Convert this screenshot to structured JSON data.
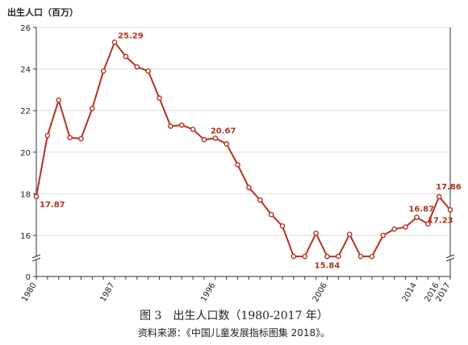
{
  "chart_data": {
    "type": "line",
    "ylabel": "出生人口（百万）",
    "ylim": [
      0,
      26
    ],
    "yticks": [
      0,
      16,
      18,
      20,
      22,
      24,
      26
    ],
    "y_axis_break": true,
    "grid": "horizontal",
    "xtick_labels": [
      "1980",
      "1987",
      "1996",
      "2006",
      "2014",
      "2016",
      "2017"
    ],
    "x": [
      1980,
      1981,
      1982,
      1983,
      1984,
      1985,
      1986,
      1987,
      1988,
      1989,
      1990,
      1991,
      1992,
      1993,
      1994,
      1995,
      1996,
      1997,
      1998,
      1999,
      2000,
      2001,
      2002,
      2003,
      2004,
      2005,
      2006,
      2007,
      2008,
      2009,
      2010,
      2011,
      2012,
      2013,
      2014,
      2015,
      2016,
      2017
    ],
    "series": [
      {
        "color": "#b5311f",
        "values": [
          17.87,
          20.8,
          22.5,
          20.7,
          20.65,
          22.1,
          23.9,
          25.29,
          24.6,
          24.1,
          23.9,
          22.6,
          21.25,
          21.3,
          21.1,
          20.6,
          20.67,
          20.4,
          19.4,
          18.3,
          17.7,
          17.0,
          16.45,
          15.95,
          15.9,
          16.1,
          15.84,
          15.95,
          16.05,
          15.9,
          15.9,
          16.0,
          16.3,
          16.4,
          16.87,
          16.55,
          17.86,
          17.23
        ]
      }
    ],
    "annotations": [
      {
        "x": 1980,
        "y": 17.87,
        "text": "17.87"
      },
      {
        "x": 1987,
        "y": 25.29,
        "text": "25.29"
      },
      {
        "x": 1996,
        "y": 20.67,
        "text": "20.67"
      },
      {
        "x": 2006,
        "y": 15.84,
        "text": "15.84"
      },
      {
        "x": 2014,
        "y": 16.87,
        "text": "16.87"
      },
      {
        "x": 2016,
        "y": 17.86,
        "text": "17.86"
      },
      {
        "x": 2017,
        "y": 17.23,
        "text": "17.23"
      }
    ]
  },
  "caption": {
    "figure": "图 3　出生人口数（1980-2017 年）",
    "source": "资料来源：《中国儿童发展指标图集 2018》。"
  },
  "colors": {
    "line": "#b5311f",
    "label": "#b5311f",
    "axis": "#333333",
    "grid": "#dddddd"
  }
}
